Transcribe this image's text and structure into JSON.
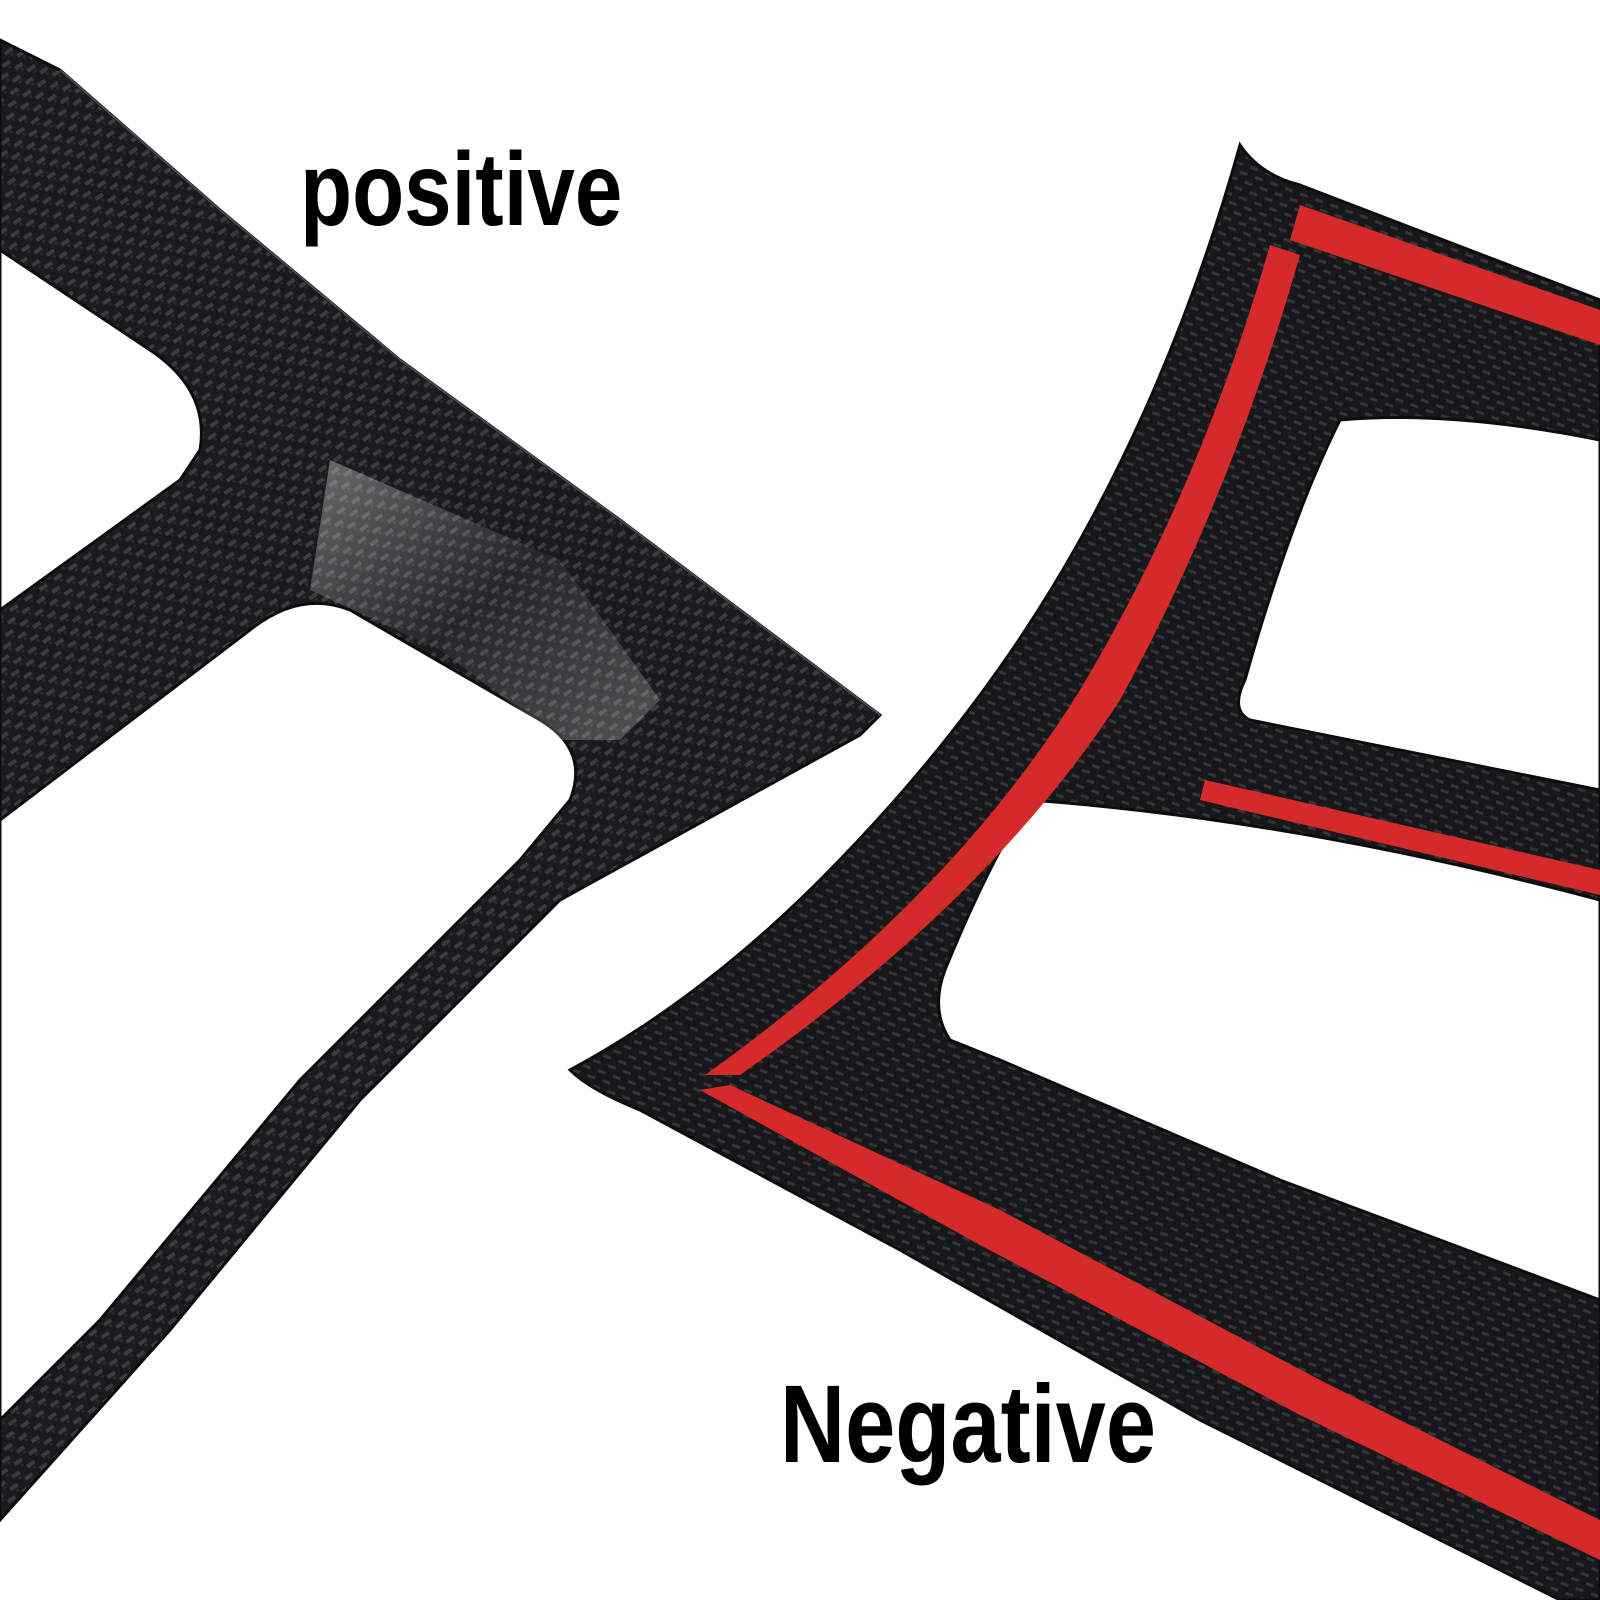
{
  "labels": {
    "top": "positive",
    "bottom": "Negative"
  },
  "colors": {
    "background": "#ffffff",
    "carbon_dark": "#1b1b1d",
    "carbon_light": "#3b3b3f",
    "adhesive_tape": "#d42a2a",
    "text": "#000000"
  },
  "parts": [
    {
      "name": "carbon-fiber-trim-front",
      "finish": "glossy carbon fiber"
    },
    {
      "name": "carbon-fiber-trim-back",
      "finish": "carbon fiber with red adhesive tape"
    }
  ]
}
